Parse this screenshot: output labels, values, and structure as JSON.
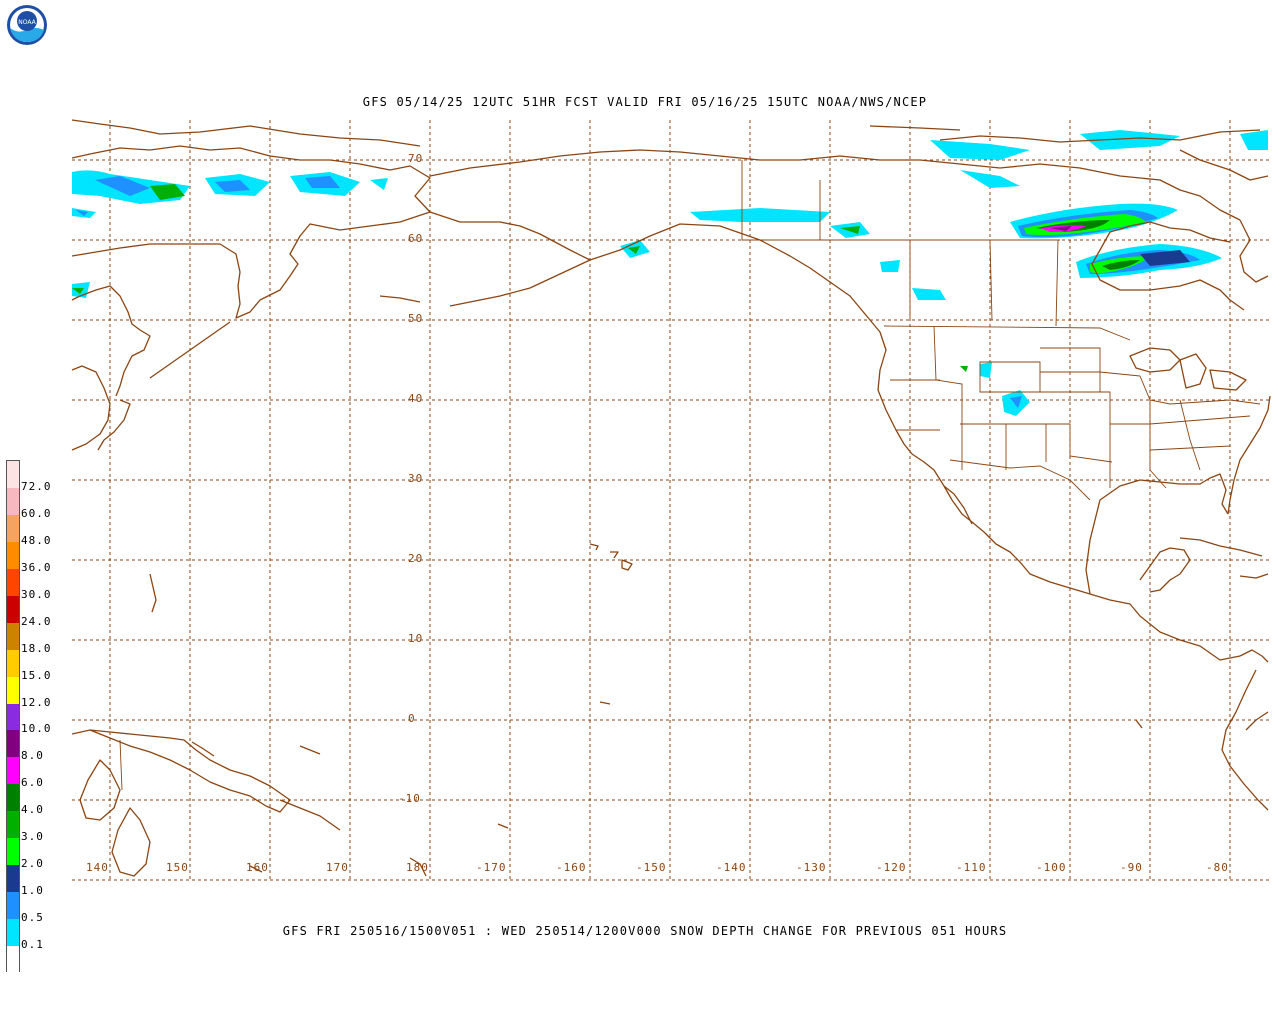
{
  "header": {
    "logo": "NOAA",
    "title": "GFS 05/14/25 12UTC 51HR FCST VALID FRI 05/16/25 15UTC NOAA/NWS/NCEP"
  },
  "footer": {
    "title": "GFS FRI 250516/1500V051 : WED 250514/1200V000 SNOW DEPTH CHANGE FOR PREVIOUS 051 HOURS"
  },
  "map": {
    "lat_labels": [
      "70",
      "60",
      "50",
      "40",
      "30",
      "20",
      "10",
      "0",
      "-10"
    ],
    "lon_labels": [
      "140",
      "150",
      "160",
      "170",
      "180",
      "-170",
      "-160",
      "-150",
      "-140",
      "-130",
      "-120",
      "-110",
      "-100",
      "-90",
      "-80"
    ],
    "colors": {
      "coast": "#8b4513",
      "grid": "#8b4513",
      "state": "#8b4513"
    }
  },
  "legend": {
    "labels": [
      "72.0",
      "60.0",
      "48.0",
      "36.0",
      "30.0",
      "24.0",
      "18.0",
      "15.0",
      "12.0",
      "10.0",
      "8.0",
      "6.0",
      "4.0",
      "3.0",
      "2.0",
      "1.0",
      "0.5",
      "0.1"
    ],
    "colors": [
      "#fce4e4",
      "#f7b8c0",
      "#f4a460",
      "#ff8c00",
      "#ff4500",
      "#cc0000",
      "#cc8400",
      "#ffcc00",
      "#ffff00",
      "#8a2be2",
      "#800080",
      "#ff00ff",
      "#008000",
      "#00b000",
      "#00ff00",
      "#1a3a8f",
      "#1e90ff",
      "#00e5ff",
      "#ffffff"
    ]
  }
}
